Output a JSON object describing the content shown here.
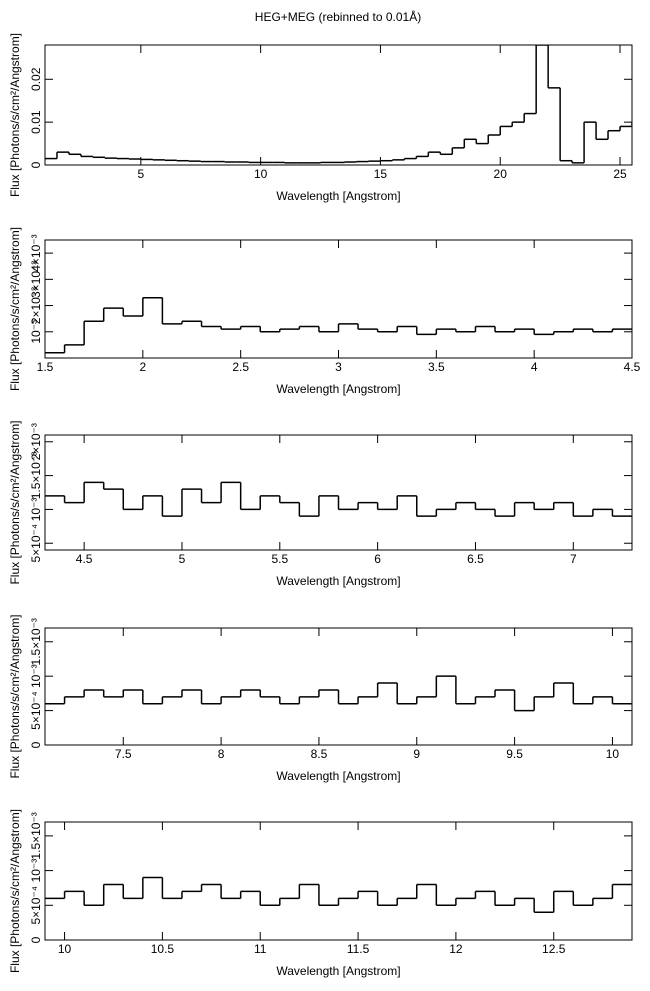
{
  "chart_data": [
    {
      "type": "step",
      "title": "HEG+MEG (rebinned to 0.01Å)",
      "xlabel": "Wavelength [Angstrom]",
      "ylabel": "Flux [Photons/s/cm²/Angstrom]",
      "color": "#000000",
      "x": [
        1,
        1.5,
        2,
        2.5,
        3,
        3.5,
        4,
        4.5,
        5,
        5.5,
        6,
        6.5,
        7,
        7.5,
        8,
        8.5,
        9,
        9.5,
        10,
        10.5,
        11,
        11.5,
        12,
        12.5,
        13,
        13.5,
        14,
        14.5,
        15,
        15.5,
        16,
        16.5,
        17,
        17.5,
        18,
        18.5,
        19,
        19.5,
        20,
        20.5,
        21,
        21.5,
        22,
        22.5,
        23,
        23.5,
        24,
        24.5,
        25,
        25.5
      ],
      "values": [
        0.0015,
        0.003,
        0.0025,
        0.002,
        0.0018,
        0.0016,
        0.0015,
        0.0014,
        0.0013,
        0.0012,
        0.0011,
        0.001,
        0.0009,
        0.0008,
        0.0008,
        0.0007,
        0.0007,
        0.0006,
        0.0006,
        0.0006,
        0.0005,
        0.0005,
        0.0005,
        0.0006,
        0.0006,
        0.0007,
        0.0008,
        0.0009,
        0.001,
        0.0012,
        0.0015,
        0.002,
        0.003,
        0.0025,
        0.004,
        0.006,
        0.005,
        0.007,
        0.009,
        0.01,
        0.012,
        0.028,
        0.018,
        0.001,
        0.0005,
        0.01,
        0.006,
        0.008,
        0.009,
        0.01
      ],
      "xlim": [
        1,
        25.5
      ],
      "xticks": [
        5,
        10,
        15,
        20,
        25
      ],
      "ylim": [
        0,
        0.028
      ],
      "yticks": [
        0,
        0.01,
        0.02
      ]
    },
    {
      "type": "step",
      "xlabel": "Wavelength [Angstrom]",
      "ylabel": "Flux [Photons/s/cm²/Angstrom]",
      "color": "#000000",
      "x": [
        1.5,
        1.6,
        1.7,
        1.8,
        1.9,
        2,
        2.1,
        2.2,
        2.3,
        2.4,
        2.5,
        2.6,
        2.7,
        2.8,
        2.9,
        3,
        3.1,
        3.2,
        3.3,
        3.4,
        3.5,
        3.6,
        3.7,
        3.8,
        3.9,
        4,
        4.1,
        4.2,
        4.3,
        4.4
      ],
      "values": [
        0.0002,
        0.0005,
        0.0014,
        0.0019,
        0.0016,
        0.0023,
        0.0013,
        0.0014,
        0.0012,
        0.0011,
        0.0012,
        0.001,
        0.0011,
        0.0012,
        0.001,
        0.0013,
        0.0011,
        0.001,
        0.0012,
        0.0009,
        0.0011,
        0.001,
        0.0012,
        0.001,
        0.0011,
        0.0009,
        0.001,
        0.0011,
        0.001,
        0.0011
      ],
      "xlim": [
        1.5,
        4.5
      ],
      "xticks": [
        1.5,
        2,
        2.5,
        3,
        3.5,
        4,
        4.5
      ],
      "ylim": [
        0,
        0.0045
      ],
      "yticks": [
        {
          "value": 0.001,
          "label": "10⁻³"
        },
        {
          "value": 0.002,
          "label": "2×10⁻³"
        },
        {
          "value": 0.003,
          "label": "3×10⁻³"
        },
        {
          "value": 0.004,
          "label": "4×10⁻³"
        }
      ]
    },
    {
      "type": "step",
      "xlabel": "Wavelength [Angstrom]",
      "ylabel": "Flux [Photons/s/cm²/Angstrom]",
      "color": "#000000",
      "x": [
        4.3,
        4.4,
        4.5,
        4.6,
        4.7,
        4.8,
        4.9,
        5,
        5.1,
        5.2,
        5.3,
        5.4,
        5.5,
        5.6,
        5.7,
        5.8,
        5.9,
        6,
        6.1,
        6.2,
        6.3,
        6.4,
        6.5,
        6.6,
        6.7,
        6.8,
        6.9,
        7,
        7.1,
        7.2
      ],
      "values": [
        0.0012,
        0.0011,
        0.0014,
        0.0013,
        0.001,
        0.0012,
        0.0009,
        0.0013,
        0.0011,
        0.0014,
        0.001,
        0.0012,
        0.0011,
        0.0009,
        0.0012,
        0.001,
        0.0011,
        0.001,
        0.0012,
        0.0009,
        0.001,
        0.0011,
        0.001,
        0.0009,
        0.0011,
        0.001,
        0.0011,
        0.0009,
        0.001,
        0.0009
      ],
      "xlim": [
        4.3,
        7.3
      ],
      "xticks": [
        4.5,
        5,
        5.5,
        6,
        6.5,
        7
      ],
      "ylim": [
        0.0004,
        0.0021
      ],
      "yticks": [
        {
          "value": 0.0005,
          "label": "5×10⁻⁴"
        },
        {
          "value": 0.001,
          "label": "10⁻³"
        },
        {
          "value": 0.0015,
          "label": "1.5×10⁻³"
        },
        {
          "value": 0.002,
          "label": "2×10⁻³"
        }
      ]
    },
    {
      "type": "step",
      "xlabel": "Wavelength [Angstrom]",
      "ylabel": "Flux [Photons/s/cm²/Angstrom]",
      "color": "#000000",
      "x": [
        7.1,
        7.2,
        7.3,
        7.4,
        7.5,
        7.6,
        7.7,
        7.8,
        7.9,
        8,
        8.1,
        8.2,
        8.3,
        8.4,
        8.5,
        8.6,
        8.7,
        8.8,
        8.9,
        9,
        9.1,
        9.2,
        9.3,
        9.4,
        9.5,
        9.6,
        9.7,
        9.8,
        9.9,
        10
      ],
      "values": [
        0.0006,
        0.0007,
        0.0008,
        0.0007,
        0.0008,
        0.0006,
        0.0007,
        0.0008,
        0.0006,
        0.0007,
        0.0008,
        0.0007,
        0.0006,
        0.0007,
        0.0008,
        0.0006,
        0.0007,
        0.0009,
        0.0006,
        0.0007,
        0.001,
        0.0006,
        0.0007,
        0.0008,
        0.0005,
        0.0007,
        0.0009,
        0.0006,
        0.0007,
        0.0006
      ],
      "xlim": [
        7.1,
        10.1
      ],
      "xticks": [
        7.5,
        8,
        8.5,
        9,
        9.5,
        10
      ],
      "ylim": [
        0,
        0.0017
      ],
      "yticks": [
        0,
        {
          "value": 0.0005,
          "label": "5×10⁻⁴"
        },
        {
          "value": 0.001,
          "label": "10⁻³"
        },
        {
          "value": 0.0015,
          "label": "1.5×10⁻³"
        }
      ]
    },
    {
      "type": "step",
      "xlabel": "Wavelength [Angstrom]",
      "ylabel": "Flux [Photons/s/cm²/Angstrom]",
      "color": "#000000",
      "x": [
        9.9,
        10,
        10.1,
        10.2,
        10.3,
        10.4,
        10.5,
        10.6,
        10.7,
        10.8,
        10.9,
        11,
        11.1,
        11.2,
        11.3,
        11.4,
        11.5,
        11.6,
        11.7,
        11.8,
        11.9,
        12,
        12.1,
        12.2,
        12.3,
        12.4,
        12.5,
        12.6,
        12.7,
        12.8
      ],
      "values": [
        0.0006,
        0.0007,
        0.0005,
        0.0008,
        0.0006,
        0.0009,
        0.0006,
        0.0007,
        0.0008,
        0.0006,
        0.0007,
        0.0005,
        0.0006,
        0.0008,
        0.0005,
        0.0006,
        0.0007,
        0.0005,
        0.0006,
        0.0008,
        0.0005,
        0.0006,
        0.0007,
        0.0005,
        0.0006,
        0.0004,
        0.0007,
        0.0005,
        0.0006,
        0.0008
      ],
      "xlim": [
        9.9,
        12.9
      ],
      "xticks": [
        10,
        10.5,
        11,
        11.5,
        12,
        12.5
      ],
      "ylim": [
        0,
        0.0017
      ],
      "yticks": [
        0,
        {
          "value": 0.0005,
          "label": "5×10⁻⁴"
        },
        {
          "value": 0.001,
          "label": "10⁻³"
        },
        {
          "value": 0.0015,
          "label": "1.5×10⁻³"
        }
      ]
    }
  ]
}
